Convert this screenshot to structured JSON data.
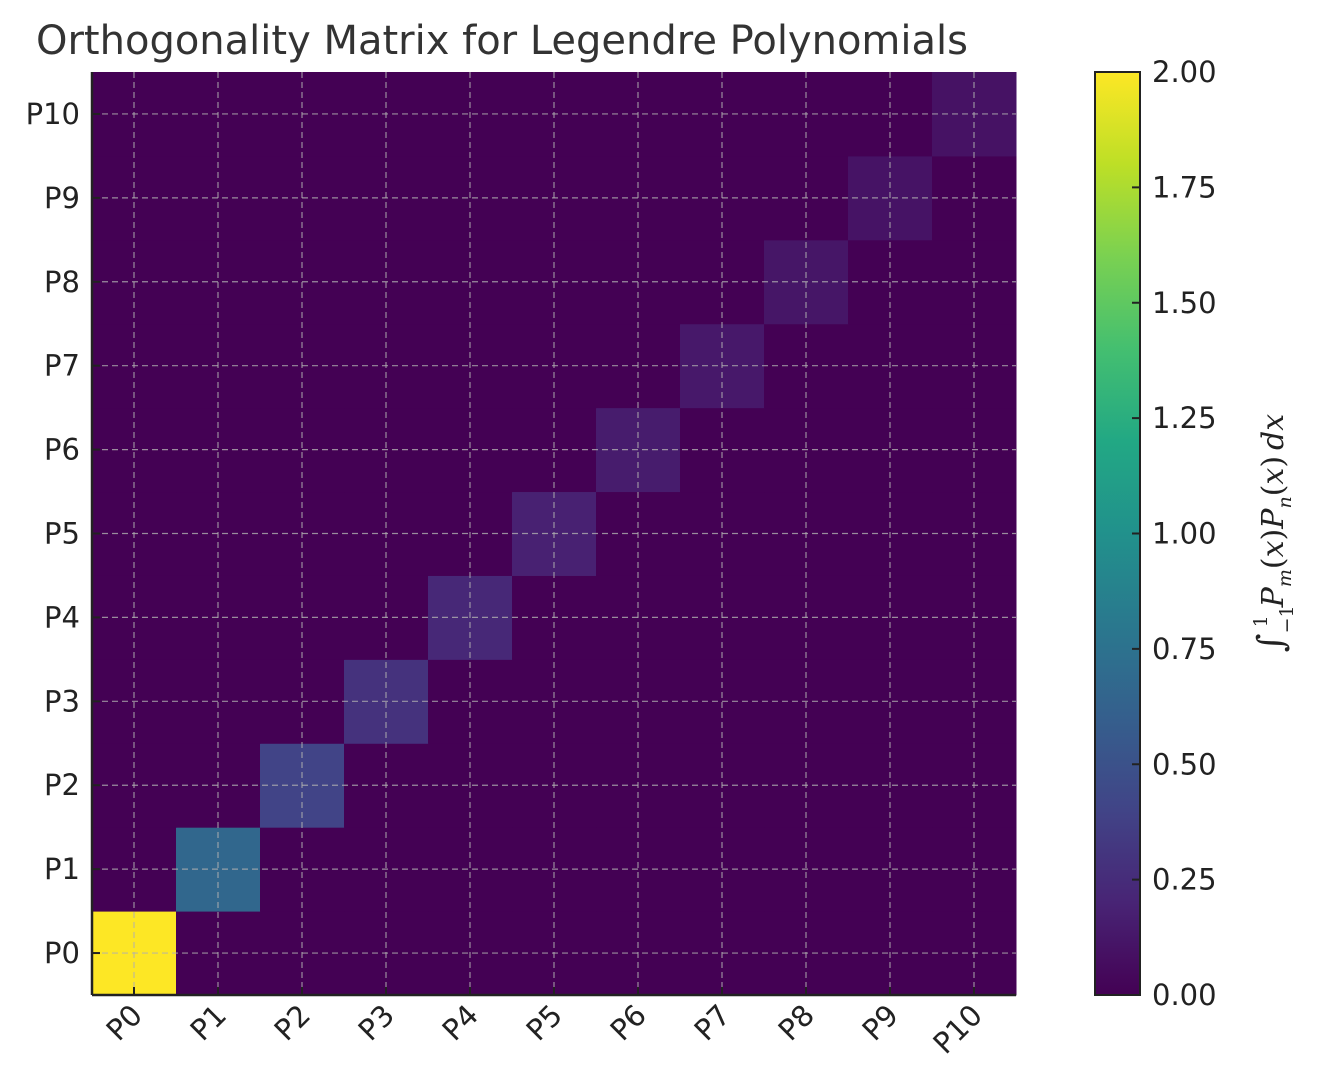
{
  "chart_data": {
    "type": "heatmap",
    "title": "Orthogonality Matrix for Legendre Polynomials",
    "x_categories": [
      "P0",
      "P1",
      "P2",
      "P3",
      "P4",
      "P5",
      "P6",
      "P7",
      "P8",
      "P9",
      "P10"
    ],
    "y_categories": [
      "P0",
      "P1",
      "P2",
      "P3",
      "P4",
      "P5",
      "P6",
      "P7",
      "P8",
      "P9",
      "P10"
    ],
    "y_order": "P0 at bottom, P10 at top",
    "values": [
      [
        2.0,
        0,
        0,
        0,
        0,
        0,
        0,
        0,
        0,
        0,
        0
      ],
      [
        0,
        0.6667,
        0,
        0,
        0,
        0,
        0,
        0,
        0,
        0,
        0
      ],
      [
        0,
        0,
        0.4,
        0,
        0,
        0,
        0,
        0,
        0,
        0,
        0
      ],
      [
        0,
        0,
        0,
        0.2857,
        0,
        0,
        0,
        0,
        0,
        0,
        0
      ],
      [
        0,
        0,
        0,
        0,
        0.2222,
        0,
        0,
        0,
        0,
        0,
        0
      ],
      [
        0,
        0,
        0,
        0,
        0,
        0.1818,
        0,
        0,
        0,
        0,
        0
      ],
      [
        0,
        0,
        0,
        0,
        0,
        0,
        0.1538,
        0,
        0,
        0,
        0
      ],
      [
        0,
        0,
        0,
        0,
        0,
        0,
        0,
        0.1333,
        0,
        0,
        0
      ],
      [
        0,
        0,
        0,
        0,
        0,
        0,
        0,
        0,
        0.1176,
        0,
        0
      ],
      [
        0,
        0,
        0,
        0,
        0,
        0,
        0,
        0,
        0,
        0.1053,
        0
      ],
      [
        0,
        0,
        0,
        0,
        0,
        0,
        0,
        0,
        0,
        0,
        0.0952
      ]
    ],
    "colormap": "viridis",
    "vmin": 0.0,
    "vmax": 2.0,
    "grid": true,
    "colorbar": {
      "ticks": [
        "0.00",
        "0.25",
        "0.50",
        "0.75",
        "1.00",
        "1.25",
        "1.50",
        "1.75",
        "2.00"
      ],
      "tick_values": [
        0,
        0.25,
        0.5,
        0.75,
        1.0,
        1.25,
        1.5,
        1.75,
        2.0
      ],
      "label": "∫₋₁¹ Pm(x)Pn(x) dx"
    }
  }
}
